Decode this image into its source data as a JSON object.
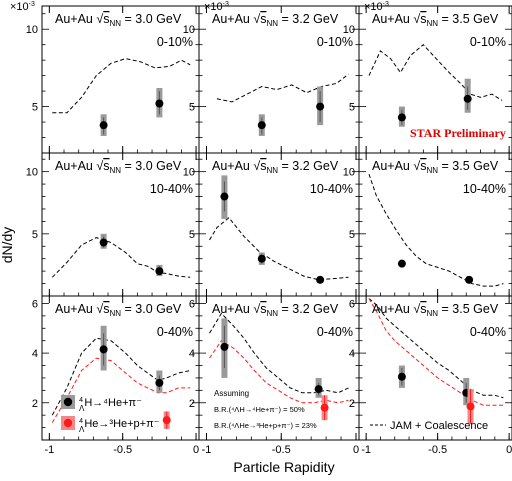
{
  "chart_data": {
    "type": "scatter",
    "xlabel": "Particle Rapidity",
    "ylabel": "dN/dy",
    "xticks": [
      "-1",
      "-0.5",
      "0"
    ],
    "y_exponent": "×10",
    "y_exponent_power": "-3",
    "preliminary": "STAR Preliminary",
    "collision_prefix": "Au+Au",
    "energy_label": "s",
    "energy_sub": "NN",
    "xlim": [
      -1.05,
      0.02
    ],
    "rows": [
      {
        "ylim": [
          2.0,
          11.5
        ],
        "yticks": [
          5,
          10
        ]
      },
      {
        "ylim": [
          0.0,
          11.5
        ],
        "yticks": [
          5,
          10
        ]
      },
      {
        "ylim": [
          0.5,
          6.3
        ],
        "yticks": [
          2,
          4,
          6
        ]
      }
    ],
    "panels": [
      {
        "row": 0,
        "col": 0,
        "energy": "= 3.0 GeV",
        "centrality": "0-10%",
        "points": [
          {
            "series": "H4L",
            "x": -0.63,
            "y": 3.8,
            "stat_lo": 3.2,
            "stat_hi": 4.3,
            "sys_lo": 3.1,
            "sys_hi": 4.5
          },
          {
            "series": "H4L",
            "x": -0.25,
            "y": 5.2,
            "stat_lo": 4.5,
            "stat_hi": 6.0,
            "sys_lo": 4.3,
            "sys_hi": 6.2
          }
        ],
        "curves": [
          {
            "series": "JAM",
            "x": [
              -0.98,
              -0.88,
              -0.78,
              -0.68,
              -0.58,
              -0.48,
              -0.38,
              -0.28,
              -0.18,
              -0.1,
              -0.04
            ],
            "y": [
              4.6,
              4.6,
              5.6,
              7.0,
              7.8,
              8.1,
              7.9,
              7.5,
              7.6,
              8.0,
              7.7
            ]
          }
        ]
      },
      {
        "row": 0,
        "col": 1,
        "energy": "= 3.2 GeV",
        "centrality": "0-10%",
        "points": [
          {
            "series": "H4L",
            "x": -0.63,
            "y": 3.8,
            "stat_lo": 3.2,
            "stat_hi": 4.3,
            "sys_lo": 3.1,
            "sys_hi": 4.5
          },
          {
            "series": "H4L",
            "x": -0.24,
            "y": 5.0,
            "stat_lo": 4.0,
            "stat_hi": 6.0,
            "sys_lo": 3.8,
            "sys_hi": 6.3
          }
        ],
        "curves": [
          {
            "series": "JAM",
            "x": [
              -0.93,
              -0.83,
              -0.73,
              -0.63,
              -0.53,
              -0.43,
              -0.33,
              -0.23,
              -0.13,
              -0.05
            ],
            "y": [
              5.5,
              5.3,
              5.8,
              6.3,
              6.1,
              6.4,
              5.9,
              6.3,
              6.5,
              7.1
            ]
          }
        ]
      },
      {
        "row": 0,
        "col": 2,
        "energy": "= 3.5 GeV",
        "centrality": "0-10%",
        "points": [
          {
            "series": "H4L",
            "x": -0.75,
            "y": 4.3,
            "stat_lo": 3.8,
            "stat_hi": 4.8,
            "sys_lo": 3.7,
            "sys_hi": 5.0
          },
          {
            "series": "H4L",
            "x": -0.29,
            "y": 5.5,
            "stat_lo": 4.8,
            "stat_hi": 6.3,
            "sys_lo": 4.6,
            "sys_hi": 6.8
          }
        ],
        "curves": [
          {
            "series": "JAM",
            "x": [
              -0.98,
              -0.9,
              -0.83,
              -0.76,
              -0.69,
              -0.6,
              -0.5,
              -0.42,
              -0.34,
              -0.27,
              -0.2,
              -0.12,
              -0.05
            ],
            "y": [
              7.0,
              8.6,
              8.1,
              7.2,
              8.3,
              9.0,
              8.0,
              7.2,
              6.5,
              5.8,
              5.6,
              5.8,
              5.4
            ]
          }
        ]
      },
      {
        "row": 1,
        "col": 0,
        "energy": "= 3.0 GeV",
        "centrality": "10-40%",
        "points": [
          {
            "series": "H4L",
            "x": -0.63,
            "y": 4.3,
            "stat_lo": 3.9,
            "stat_hi": 4.8,
            "sys_lo": 3.8,
            "sys_hi": 5.0
          },
          {
            "series": "H4L",
            "x": -0.25,
            "y": 2.0,
            "stat_lo": 1.7,
            "stat_hi": 2.4,
            "sys_lo": 1.6,
            "sys_hi": 2.5
          }
        ],
        "curves": [
          {
            "series": "JAM",
            "x": [
              -0.98,
              -0.88,
              -0.78,
              -0.68,
              -0.58,
              -0.48,
              -0.4,
              -0.33,
              -0.26,
              -0.2,
              -0.12,
              -0.04
            ],
            "y": [
              1.5,
              2.7,
              4.1,
              4.7,
              4.3,
              3.5,
              2.6,
              2.4,
              1.9,
              1.8,
              1.6,
              1.5
            ]
          }
        ]
      },
      {
        "row": 1,
        "col": 1,
        "energy": "= 3.2 GeV",
        "centrality": "10-40%",
        "points": [
          {
            "series": "H4L",
            "x": -0.88,
            "y": 8.0,
            "stat_lo": 6.8,
            "stat_hi": 9.2,
            "sys_lo": 6.2,
            "sys_hi": 9.7
          },
          {
            "series": "H4L",
            "x": -0.63,
            "y": 3.0,
            "stat_lo": 2.6,
            "stat_hi": 3.4,
            "sys_lo": 2.5,
            "sys_hi": 3.5
          },
          {
            "series": "H4L",
            "x": -0.24,
            "y": 1.3,
            "stat_lo": 1.1,
            "stat_hi": 1.5,
            "sys_lo": 1.05,
            "sys_hi": 1.55
          }
        ],
        "curves": [
          {
            "series": "JAM",
            "x": [
              -0.98,
              -0.93,
              -0.85,
              -0.75,
              -0.65,
              -0.55,
              -0.45,
              -0.35,
              -0.25,
              -0.15,
              -0.05
            ],
            "y": [
              4.5,
              5.5,
              6.3,
              4.8,
              3.6,
              2.8,
              2.2,
              1.6,
              1.3,
              1.4,
              1.5
            ]
          }
        ]
      },
      {
        "row": 1,
        "col": 2,
        "energy": "= 3.5 GeV",
        "centrality": "10-40%",
        "points": [
          {
            "series": "H4L",
            "x": -0.75,
            "y": 2.6,
            "stat_lo": 2.45,
            "stat_hi": 2.75,
            "sys_lo": 2.4,
            "sys_hi": 2.8
          },
          {
            "series": "H4L",
            "x": -0.28,
            "y": 1.3,
            "stat_lo": 1.1,
            "stat_hi": 1.5,
            "sys_lo": 1.05,
            "sys_hi": 1.55
          }
        ],
        "curves": [
          {
            "series": "JAM",
            "x": [
              -0.98,
              -0.93,
              -0.86,
              -0.79,
              -0.72,
              -0.65,
              -0.58,
              -0.5,
              -0.42,
              -0.34,
              -0.26,
              -0.18,
              -0.1,
              -0.04
            ],
            "y": [
              9.8,
              8.1,
              6.6,
              5.3,
              4.1,
              3.2,
              2.6,
              2.3,
              2.0,
              1.5,
              1.0,
              0.8,
              0.8,
              1.0
            ]
          }
        ]
      },
      {
        "row": 2,
        "col": 0,
        "energy": "= 3.0 GeV",
        "centrality": "0-40%",
        "points": [
          {
            "series": "H4L",
            "x": -0.63,
            "y": 4.15,
            "stat_lo": 3.5,
            "stat_hi": 4.8,
            "sys_lo": 3.3,
            "sys_hi": 5.1
          },
          {
            "series": "H4L",
            "x": -0.25,
            "y": 2.8,
            "stat_lo": 2.5,
            "stat_hi": 3.1,
            "sys_lo": 2.4,
            "sys_hi": 3.3
          },
          {
            "series": "He4L",
            "x": -0.2,
            "y": 1.3,
            "stat_lo": 0.95,
            "stat_hi": 1.65,
            "sys_lo": 0.95,
            "sys_hi": 1.65
          }
        ],
        "curves": [
          {
            "series": "JAM_H4L",
            "x": [
              -0.98,
              -0.88,
              -0.78,
              -0.68,
              -0.58,
              -0.48,
              -0.4,
              -0.33,
              -0.26,
              -0.2,
              -0.12,
              -0.04
            ],
            "y": [
              1.5,
              2.6,
              4.0,
              4.6,
              4.5,
              4.0,
              3.5,
              3.2,
              2.9,
              3.0,
              3.2,
              3.3
            ]
          },
          {
            "series": "JAM_He4L",
            "x": [
              -0.98,
              -0.88,
              -0.78,
              -0.68,
              -0.58,
              -0.48,
              -0.4,
              -0.33,
              -0.26,
              -0.2,
              -0.12,
              -0.04
            ],
            "y": [
              1.2,
              2.2,
              3.3,
              3.8,
              3.7,
              3.2,
              2.8,
              2.6,
              2.4,
              2.4,
              2.6,
              2.6
            ]
          }
        ]
      },
      {
        "row": 2,
        "col": 1,
        "energy": "= 3.2 GeV",
        "centrality": "0-40%",
        "points": [
          {
            "series": "H4L",
            "x": -0.88,
            "y": 4.25,
            "stat_lo": 3.4,
            "stat_hi": 5.1,
            "sys_lo": 3.0,
            "sys_hi": 5.4
          },
          {
            "series": "H4L",
            "x": -0.25,
            "y": 2.55,
            "stat_lo": 2.3,
            "stat_hi": 2.8,
            "sys_lo": 2.2,
            "sys_hi": 3.0
          },
          {
            "series": "He4L",
            "x": -0.21,
            "y": 1.8,
            "stat_lo": 1.3,
            "stat_hi": 2.3,
            "sys_lo": 1.3,
            "sys_hi": 2.3
          }
        ],
        "curves": [
          {
            "series": "JAM_H4L",
            "x": [
              -0.98,
              -0.9,
              -0.82,
              -0.75,
              -0.68,
              -0.6,
              -0.52,
              -0.44,
              -0.36,
              -0.28,
              -0.2,
              -0.12,
              -0.05
            ],
            "y": [
              4.8,
              5.6,
              5.1,
              4.6,
              4.0,
              3.4,
              3.0,
              2.6,
              2.4,
              2.4,
              2.5,
              2.4,
              2.6
            ]
          },
          {
            "series": "JAM_He4L",
            "x": [
              -0.98,
              -0.9,
              -0.82,
              -0.75,
              -0.68,
              -0.6,
              -0.52,
              -0.44,
              -0.36,
              -0.28,
              -0.2,
              -0.12,
              -0.05
            ],
            "y": [
              3.8,
              4.5,
              4.2,
              3.8,
              3.3,
              2.8,
              2.5,
              2.2,
              2.0,
              2.0,
              2.1,
              2.0,
              2.1
            ]
          }
        ]
      },
      {
        "row": 2,
        "col": 2,
        "energy": "= 3.5 GeV",
        "centrality": "0-40%",
        "points": [
          {
            "series": "H4L",
            "x": -0.75,
            "y": 3.05,
            "stat_lo": 2.7,
            "stat_hi": 3.4,
            "sys_lo": 2.6,
            "sys_hi": 3.5
          },
          {
            "series": "H4L",
            "x": -0.3,
            "y": 2.4,
            "stat_lo": 2.0,
            "stat_hi": 2.8,
            "sys_lo": 1.9,
            "sys_hi": 3.0
          },
          {
            "series": "He4L",
            "x": -0.27,
            "y": 1.85,
            "stat_lo": 1.15,
            "stat_hi": 2.55,
            "sys_lo": 1.15,
            "sys_hi": 2.55
          }
        ],
        "curves": [
          {
            "series": "JAM_H4L",
            "x": [
              -0.98,
              -0.92,
              -0.86,
              -0.8,
              -0.74,
              -0.68,
              -0.62,
              -0.56,
              -0.5,
              -0.42,
              -0.34,
              -0.26,
              -0.18,
              -0.1,
              -0.04
            ],
            "y": [
              6.2,
              5.9,
              5.4,
              5.1,
              4.8,
              4.5,
              4.2,
              3.9,
              3.6,
              3.3,
              2.9,
              2.5,
              2.3,
              2.3,
              2.2
            ]
          },
          {
            "series": "JAM_He4L",
            "x": [
              -0.98,
              -0.92,
              -0.86,
              -0.8,
              -0.74,
              -0.68,
              -0.62,
              -0.56,
              -0.5,
              -0.42,
              -0.34,
              -0.26,
              -0.18,
              -0.1,
              -0.04
            ],
            "y": [
              6.2,
              5.6,
              4.9,
              4.5,
              4.2,
              3.9,
              3.6,
              3.3,
              3.0,
              2.7,
              2.4,
              2.1,
              1.9,
              1.9,
              1.9
            ]
          }
        ]
      }
    ],
    "legend": {
      "h4l_text": "H→⁴He+π⁻",
      "h4l_mass": "4",
      "he4l_text": "He→³He+p+π⁻",
      "he4l_mass": "4",
      "lambda": "Λ",
      "jam_label": "JAM + Coalescence",
      "assuming": "Assuming",
      "br1": "B.R.(⁴ΛH→⁴He+π⁻) = 50%",
      "br2": "B.R.(⁴ΛHe→³He+p+π⁻) = 23%"
    },
    "colors": {
      "h4l_marker": "#000000",
      "h4l_band": "#9a9a9a",
      "he4l_marker": "#ff1a1a",
      "he4l_band": "#f08a8a",
      "jam_h4l": "#000000",
      "jam_he4l": "#ff1a1a",
      "preliminary": "#e00000"
    }
  }
}
